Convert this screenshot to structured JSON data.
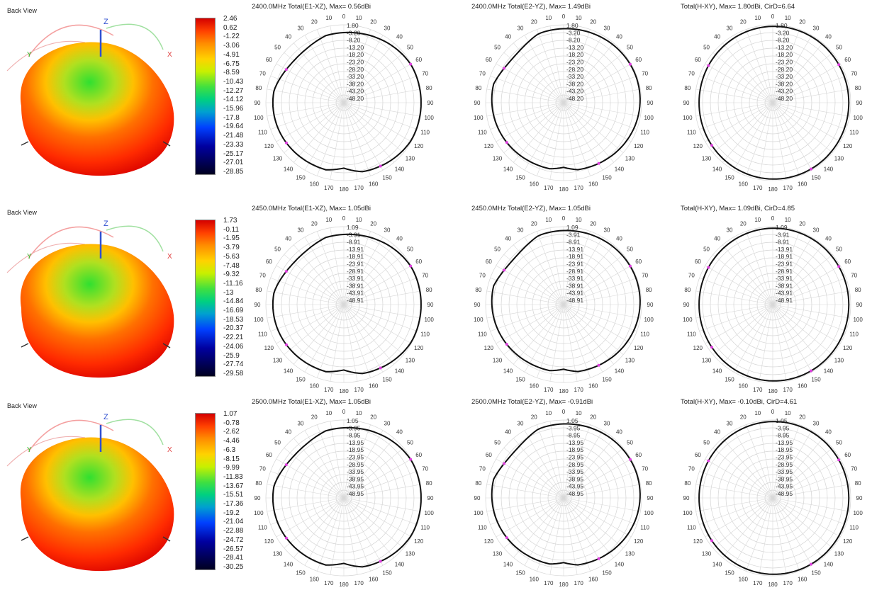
{
  "back_view_label": "Back View",
  "axis_labels": {
    "z": "Z",
    "y": "Y",
    "x": "X"
  },
  "rows": [
    {
      "colorbar": [
        "2.46",
        "0.62",
        "-1.22",
        "-3.06",
        "-4.91",
        "-6.75",
        "-8.59",
        "-10.43",
        "-12.27",
        "-14.12",
        "-15.96",
        "-17.8",
        "-19.64",
        "-21.48",
        "-23.33",
        "-25.17",
        "-27.01",
        "-28.85"
      ],
      "charts": [
        {
          "title": "2400.0MHz Total(E1-XZ), Max= 0.56dBi",
          "rings": [
            "1.80",
            "-3.20",
            "-8.20",
            "-13.20",
            "-18.20",
            "-23.20",
            "-28.20",
            "-33.20",
            "-38.20",
            "-43.20",
            "-48.20"
          ],
          "shape": "e1a"
        },
        {
          "title": "2400.0MHz Total(E2-YZ), Max= 1.49dBi",
          "rings": [
            "1.80",
            "-3.20",
            "-8.20",
            "-13.20",
            "-18.20",
            "-23.20",
            "-28.20",
            "-33.20",
            "-38.20",
            "-43.20",
            "-48.20"
          ],
          "shape": "e2a"
        },
        {
          "title": "Total(H-XY), Max= 1.80dBi, CirD=6.64",
          "rings": [
            "1.80",
            "-3.20",
            "-8.20",
            "-13.20",
            "-18.20",
            "-23.20",
            "-28.20",
            "-33.20",
            "-38.20",
            "-43.20",
            "-48.20"
          ],
          "shape": "ha"
        }
      ]
    },
    {
      "colorbar": [
        "1.73",
        "-0.11",
        "-1.95",
        "-3.79",
        "-5.63",
        "-7.48",
        "-9.32",
        "-11.16",
        "-13",
        "-14.84",
        "-16.69",
        "-18.53",
        "-20.37",
        "-22.21",
        "-24.06",
        "-25.9",
        "-27.74",
        "-29.58"
      ],
      "charts": [
        {
          "title": "2450.0MHz Total(E1-XZ), Max= 1.05dBi",
          "rings": [
            "1.09",
            "-3.91",
            "-8.91",
            "-13.91",
            "-18.91",
            "-23.91",
            "-28.91",
            "-33.91",
            "-38.91",
            "-43.91",
            "-48.91"
          ],
          "shape": "e1b"
        },
        {
          "title": "2450.0MHz Total(E2-YZ), Max= 1.05dBi",
          "rings": [
            "1.09",
            "-3.91",
            "-8.91",
            "-13.91",
            "-18.91",
            "-23.91",
            "-28.91",
            "-33.91",
            "-38.91",
            "-43.91",
            "-48.91"
          ],
          "shape": "e2b"
        },
        {
          "title": "Total(H-XY), Max= 1.09dBi, CirD=4.85",
          "rings": [
            "1.09",
            "-3.91",
            "-8.91",
            "-13.91",
            "-18.91",
            "-23.91",
            "-28.91",
            "-33.91",
            "-38.91",
            "-43.91",
            "-48.91"
          ],
          "shape": "hb"
        }
      ]
    },
    {
      "colorbar": [
        "1.07",
        "-0.78",
        "-2.62",
        "-4.46",
        "-6.3",
        "-8.15",
        "-9.99",
        "-11.83",
        "-13.67",
        "-15.51",
        "-17.36",
        "-19.2",
        "-21.04",
        "-22.88",
        "-24.72",
        "-26.57",
        "-28.41",
        "-30.25"
      ],
      "charts": [
        {
          "title": "2500.0MHz Total(E1-XZ), Max= 1.05dBi",
          "rings": [
            "1.05",
            "-3.95",
            "-8.95",
            "-13.95",
            "-18.95",
            "-23.95",
            "-28.95",
            "-33.95",
            "-38.95",
            "-43.95",
            "-48.95"
          ],
          "shape": "e1c"
        },
        {
          "title": "2500.0MHz Total(E2-YZ), Max= -0.91dBi",
          "rings": [
            "1.05",
            "-3.95",
            "-8.95",
            "-13.95",
            "-18.95",
            "-23.95",
            "-28.95",
            "-33.95",
            "-38.95",
            "-43.95",
            "-48.95"
          ],
          "shape": "e2c"
        },
        {
          "title": "Total(H-XY), Max= -0.10dBi, CirD=4.61",
          "rings": [
            "1.05",
            "-3.95",
            "-8.95",
            "-13.95",
            "-18.95",
            "-23.95",
            "-28.95",
            "-33.95",
            "-38.95",
            "-43.95",
            "-48.95"
          ],
          "shape": "hc"
        }
      ]
    }
  ],
  "angle_labels": [
    "0",
    "10",
    "20",
    "30",
    "40",
    "50",
    "60",
    "70",
    "80",
    "90",
    "100",
    "110",
    "120",
    "130",
    "140",
    "150",
    "160",
    "170",
    "180",
    "170",
    "160",
    "150",
    "140",
    "130",
    "120",
    "110",
    "100",
    "90",
    "80",
    "70",
    "60",
    "50",
    "40",
    "30",
    "20",
    "10"
  ],
  "chart_data": [
    {
      "type": "polar",
      "title": "2400.0MHz Total(E1-XZ), Max= 0.56dBi",
      "theta": [
        0,
        30,
        60,
        90,
        120,
        150,
        180,
        210,
        240,
        270,
        300,
        330
      ],
      "r": [
        -1.0,
        -0.5,
        -0.2,
        0.3,
        -0.4,
        -2.0,
        -4.5,
        -3.5,
        -1.5,
        -1.2,
        -1.8,
        -2.5
      ]
    },
    {
      "type": "polar",
      "title": "2400.0MHz Total(E2-YZ), Max= 1.49dBi",
      "theta": [
        0,
        30,
        60,
        90,
        120,
        150,
        180,
        210,
        240,
        270,
        300,
        330
      ],
      "r": [
        1.0,
        0.5,
        0.3,
        0.2,
        -0.3,
        -1.5,
        -3.5,
        -2.0,
        -1.5,
        -1.8,
        -0.5,
        0.2
      ]
    },
    {
      "type": "polar",
      "title": "Total(H-XY), Max= 1.80dBi, CirD=6.64",
      "theta": [
        0,
        30,
        60,
        90,
        120,
        150,
        180,
        210,
        240,
        270,
        300,
        330
      ],
      "r": [
        0.5,
        0.8,
        1.2,
        1.5,
        1.6,
        1.5,
        1.4,
        1.5,
        1.6,
        1.4,
        1.0,
        0.6
      ]
    },
    {
      "type": "polar",
      "title": "2450.0MHz Total(E1-XZ), Max= 1.05dBi",
      "theta": [
        0,
        30,
        60,
        90,
        120,
        150,
        180,
        210,
        240,
        270,
        300,
        330
      ],
      "r": [
        -0.5,
        0.0,
        0.5,
        1.0,
        0.2,
        -1.5,
        -4.0,
        -3.5,
        -1.8,
        -1.2,
        -1.5,
        -2.0
      ]
    },
    {
      "type": "polar",
      "title": "2450.0MHz Total(E2-YZ), Max= 1.05dBi",
      "theta": [
        0,
        30,
        60,
        90,
        120,
        150,
        180,
        210,
        240,
        270,
        300,
        330
      ],
      "r": [
        1.0,
        0.6,
        0.4,
        0.3,
        -0.2,
        -1.2,
        -3.0,
        -1.8,
        -1.2,
        -1.5,
        -0.6,
        0.3
      ]
    },
    {
      "type": "polar",
      "title": "Total(H-XY), Max= 1.09dBi, CirD=4.85",
      "theta": [
        0,
        30,
        60,
        90,
        120,
        150,
        180,
        210,
        240,
        270,
        300,
        330
      ],
      "r": [
        0.5,
        0.7,
        0.9,
        1.0,
        1.0,
        1.0,
        0.9,
        1.0,
        1.0,
        0.9,
        0.8,
        0.6
      ]
    },
    {
      "type": "polar",
      "title": "2500.0MHz Total(E1-XZ), Max= 1.05dBi",
      "theta": [
        0,
        30,
        60,
        90,
        120,
        150,
        180,
        210,
        240,
        270,
        300,
        330
      ],
      "r": [
        -0.5,
        0.0,
        0.5,
        1.0,
        0.3,
        -1.5,
        -4.0,
        -3.5,
        -1.8,
        -1.2,
        -1.5,
        -2.0
      ]
    },
    {
      "type": "polar",
      "title": "2500.0MHz Total(E2-YZ), Max= -0.91dBi",
      "theta": [
        0,
        30,
        60,
        90,
        120,
        150,
        180,
        210,
        240,
        270,
        300,
        330
      ],
      "r": [
        -0.9,
        -1.2,
        -1.5,
        -1.5,
        -2.0,
        -3.0,
        -4.5,
        -3.5,
        -2.8,
        -2.8,
        -1.8,
        -1.0
      ]
    },
    {
      "type": "polar",
      "title": "Total(H-XY), Max= -0.10dBi, CirD=4.61",
      "theta": [
        0,
        30,
        60,
        90,
        120,
        150,
        180,
        210,
        240,
        270,
        300,
        330
      ],
      "r": [
        -0.5,
        -0.3,
        -0.1,
        -0.1,
        -0.2,
        -0.3,
        -0.5,
        -0.3,
        -0.2,
        -0.2,
        -0.3,
        -0.5
      ]
    }
  ]
}
